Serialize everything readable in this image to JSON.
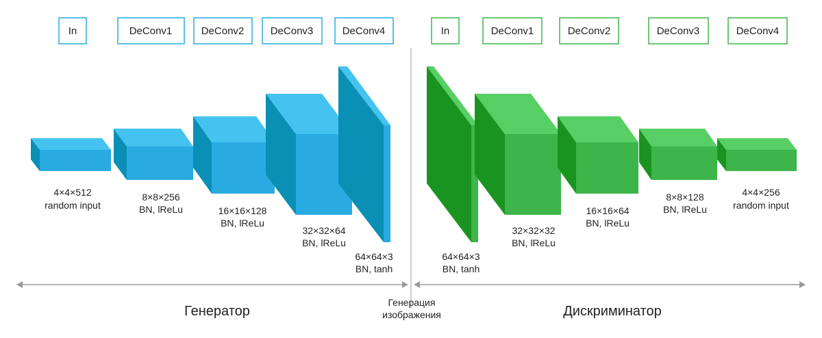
{
  "colors": {
    "generator_front": "#29ABE2",
    "generator_top": "#45C3F0",
    "generator_side": "#0A8FB5",
    "discriminator_front": "#3DB54A",
    "discriminator_top": "#57CF64",
    "discriminator_side": "#1A9420",
    "divider": "#BBBBBB",
    "arrow": "#999999"
  },
  "generator": {
    "title": "Генератор",
    "layer_labels": [
      "In",
      "DeConv1",
      "DeConv2",
      "DeConv3",
      "DeConv4"
    ],
    "blocks": [
      {
        "dims": "4×4×512",
        "desc": "random input"
      },
      {
        "dims": "8×8×256",
        "desc": "BN, lReLu"
      },
      {
        "dims": "16×16×128",
        "desc": "BN, lReLu"
      },
      {
        "dims": "32×32×64",
        "desc": "BN, lReLu"
      },
      {
        "dims": "64×64×3",
        "desc": "BN, tanh"
      }
    ]
  },
  "discriminator": {
    "title": "Дискриминатор",
    "layer_labels": [
      "In",
      "DeConv1",
      "DeConv2",
      "DeConv3",
      "DeConv4"
    ],
    "blocks": [
      {
        "dims": "64×64×3",
        "desc": "BN, tanh"
      },
      {
        "dims": "32×32×32",
        "desc": "BN, lReLu"
      },
      {
        "dims": "16×16×64",
        "desc": "BN, lReLu"
      },
      {
        "dims": "8×8×128",
        "desc": "BN, lReLu"
      },
      {
        "dims": "4×4×256",
        "desc": "random input"
      }
    ]
  },
  "center": {
    "line1": "Генерация",
    "line2": "изображения"
  }
}
